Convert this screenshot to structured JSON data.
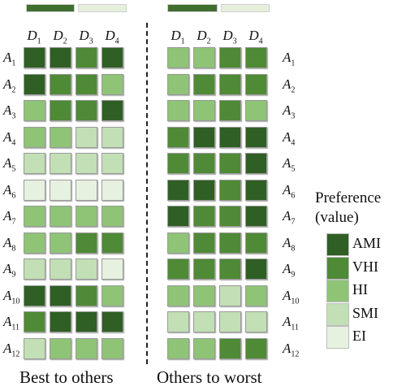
{
  "colors": {
    "AMI": "#2f5f24",
    "VHI": "#4f8a36",
    "HI": "#8fc477",
    "SMI": "#c2dfb5",
    "EI": "#e6f1df"
  },
  "columns": [
    {
      "letter": "D",
      "sub": "1"
    },
    {
      "letter": "D",
      "sub": "2"
    },
    {
      "letter": "D",
      "sub": "3"
    },
    {
      "letter": "D",
      "sub": "4"
    }
  ],
  "rows": [
    {
      "letter": "A",
      "sub": "1"
    },
    {
      "letter": "A",
      "sub": "2"
    },
    {
      "letter": "A",
      "sub": "3"
    },
    {
      "letter": "A",
      "sub": "4"
    },
    {
      "letter": "A",
      "sub": "5"
    },
    {
      "letter": "A",
      "sub": "6"
    },
    {
      "letter": "A",
      "sub": "7"
    },
    {
      "letter": "A",
      "sub": "8"
    },
    {
      "letter": "A",
      "sub": "9"
    },
    {
      "letter": "A",
      "sub": "10"
    },
    {
      "letter": "A",
      "sub": "11"
    },
    {
      "letter": "A",
      "sub": "12"
    }
  ],
  "panels": [
    {
      "caption": "Best to others",
      "values": [
        [
          "AMI",
          "AMI",
          "VHI",
          "AMI"
        ],
        [
          "AMI",
          "VHI",
          "VHI",
          "HI"
        ],
        [
          "HI",
          "VHI",
          "VHI",
          "AMI"
        ],
        [
          "HI",
          "HI",
          "SMI",
          "SMI"
        ],
        [
          "SMI",
          "SMI",
          "SMI",
          "SMI"
        ],
        [
          "EI",
          "EI",
          "EI",
          "EI"
        ],
        [
          "HI",
          "HI",
          "HI",
          "HI"
        ],
        [
          "HI",
          "HI",
          "VHI",
          "VHI"
        ],
        [
          "SMI",
          "SMI",
          "SMI",
          "EI"
        ],
        [
          "AMI",
          "AMI",
          "VHI",
          "HI"
        ],
        [
          "VHI",
          "AMI",
          "AMI",
          "AMI"
        ],
        [
          "SMI",
          "HI",
          "HI",
          "HI"
        ]
      ]
    },
    {
      "caption": "Others to worst",
      "values": [
        [
          "HI",
          "HI",
          "VHI",
          "VHI"
        ],
        [
          "HI",
          "VHI",
          "VHI",
          "VHI"
        ],
        [
          "HI",
          "HI",
          "VHI",
          "HI"
        ],
        [
          "VHI",
          "AMI",
          "AMI",
          "AMI"
        ],
        [
          "VHI",
          "VHI",
          "VHI",
          "AMI"
        ],
        [
          "AMI",
          "AMI",
          "VHI",
          "AMI"
        ],
        [
          "AMI",
          "VHI",
          "VHI",
          "AMI"
        ],
        [
          "HI",
          "VHI",
          "VHI",
          "VHI"
        ],
        [
          "VHI",
          "VHI",
          "VHI",
          "AMI"
        ],
        [
          "HI",
          "HI",
          "SMI",
          "HI"
        ],
        [
          "SMI",
          "SMI",
          "SMI",
          "SMI"
        ],
        [
          "HI",
          "HI",
          "VHI",
          "VHI"
        ]
      ]
    }
  ],
  "legend": {
    "title_line1": "Preference",
    "title_line2": "(value)",
    "items": [
      "AMI",
      "VHI",
      "HI",
      "SMI",
      "EI"
    ]
  }
}
